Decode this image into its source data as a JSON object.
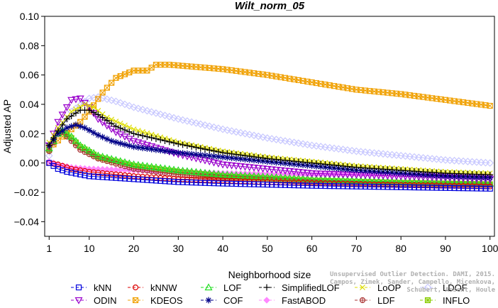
{
  "watermark": {
    "line1": "Unsupervised Outlier Detection. DAMI, 2015.",
    "line2": "Campos, Zimek, Sander, Campello, Micenkova, Schubert, Assent, Houle"
  },
  "chart_data": {
    "type": "line",
    "title": "Wilt_norm_05",
    "xlabel": "Neighborhood size",
    "ylabel": "Adjusted AP",
    "xlim": [
      0,
      101
    ],
    "ylim": [
      -0.05,
      0.1
    ],
    "xticks": [
      1,
      10,
      20,
      30,
      40,
      50,
      60,
      70,
      80,
      90,
      100
    ],
    "yticks": [
      -0.04,
      -0.02,
      0.0,
      0.02,
      0.04,
      0.06,
      0.08,
      0.1
    ],
    "ytick_labels": [
      "−0.04",
      "−0.02",
      "0.00",
      "0.02",
      "0.04",
      "0.06",
      "0.08",
      "0.10"
    ],
    "grid": false,
    "legend_position": "bottom",
    "series": [
      {
        "name": "kNN",
        "color": "#0000dd",
        "marker": "square",
        "knots": [
          [
            1,
            0.0
          ],
          [
            3,
            -0.004
          ],
          [
            5,
            -0.006
          ],
          [
            10,
            -0.009
          ],
          [
            20,
            -0.011
          ],
          [
            30,
            -0.013
          ],
          [
            40,
            -0.014
          ],
          [
            60,
            -0.0155
          ],
          [
            80,
            -0.0165
          ],
          [
            100,
            -0.0175
          ]
        ]
      },
      {
        "name": "kNNW",
        "color": "#dd0000",
        "marker": "circle",
        "knots": [
          [
            1,
            0.0
          ],
          [
            3,
            -0.001
          ],
          [
            6,
            -0.004
          ],
          [
            10,
            -0.006
          ],
          [
            20,
            -0.009
          ],
          [
            30,
            -0.011
          ],
          [
            50,
            -0.013
          ],
          [
            70,
            -0.0145
          ],
          [
            100,
            -0.016
          ]
        ]
      },
      {
        "name": "LOF",
        "color": "#22dd22",
        "marker": "triangle-up",
        "knots": [
          [
            1,
            0.01
          ],
          [
            3,
            0.02
          ],
          [
            4,
            0.022
          ],
          [
            6,
            0.018
          ],
          [
            8,
            0.012
          ],
          [
            12,
            0.005
          ],
          [
            20,
            -0.001
          ],
          [
            30,
            -0.005
          ],
          [
            40,
            -0.008
          ],
          [
            60,
            -0.011
          ],
          [
            80,
            -0.013
          ],
          [
            100,
            -0.014
          ]
        ]
      },
      {
        "name": "SimplifiedLOF",
        "color": "#000000",
        "marker": "plus",
        "knots": [
          [
            1,
            0.012
          ],
          [
            3,
            0.022
          ],
          [
            5,
            0.03
          ],
          [
            8,
            0.036
          ],
          [
            10,
            0.036
          ],
          [
            12,
            0.033
          ],
          [
            16,
            0.025
          ],
          [
            20,
            0.02
          ],
          [
            30,
            0.013
          ],
          [
            40,
            0.007
          ],
          [
            50,
            0.003
          ],
          [
            60,
            0.0
          ],
          [
            70,
            -0.003
          ],
          [
            80,
            -0.005
          ],
          [
            90,
            -0.007
          ],
          [
            100,
            -0.008
          ]
        ]
      },
      {
        "name": "LoOP",
        "color": "#dddd00",
        "marker": "x",
        "knots": [
          [
            1,
            0.014
          ],
          [
            3,
            0.024
          ],
          [
            6,
            0.035
          ],
          [
            9,
            0.04
          ],
          [
            11,
            0.038
          ],
          [
            14,
            0.031
          ],
          [
            20,
            0.023
          ],
          [
            30,
            0.014
          ],
          [
            40,
            0.008
          ],
          [
            50,
            0.004
          ],
          [
            60,
            0.001
          ],
          [
            70,
            -0.002
          ],
          [
            80,
            -0.004
          ],
          [
            90,
            -0.006
          ],
          [
            100,
            -0.007
          ]
        ]
      },
      {
        "name": "LDOF",
        "color": "#c8c8ff",
        "marker": "diamond",
        "knots": [
          [
            1,
            0.005
          ],
          [
            3,
            0.02
          ],
          [
            6,
            0.035
          ],
          [
            10,
            0.044
          ],
          [
            12,
            0.045
          ],
          [
            16,
            0.042
          ],
          [
            20,
            0.038
          ],
          [
            30,
            0.03
          ],
          [
            40,
            0.023
          ],
          [
            50,
            0.017
          ],
          [
            60,
            0.012
          ],
          [
            70,
            0.008
          ],
          [
            80,
            0.005
          ],
          [
            90,
            0.002
          ],
          [
            100,
            0.0
          ]
        ]
      },
      {
        "name": "ODIN",
        "color": "#9900cc",
        "marker": "triangle-down",
        "knots": [
          [
            1,
            0.012
          ],
          [
            3,
            0.028
          ],
          [
            6,
            0.043
          ],
          [
            8,
            0.044
          ],
          [
            10,
            0.038
          ],
          [
            12,
            0.03
          ],
          [
            16,
            0.021
          ],
          [
            20,
            0.015
          ],
          [
            30,
            0.006
          ],
          [
            40,
            -0.001
          ],
          [
            50,
            -0.004
          ],
          [
            60,
            -0.007
          ],
          [
            80,
            -0.009
          ],
          [
            100,
            -0.011
          ]
        ]
      },
      {
        "name": "KDEOS",
        "color": "#f0a000",
        "marker": "square-x",
        "knots": [
          [
            1,
            0.01
          ],
          [
            4,
            0.018
          ],
          [
            8,
            0.028
          ],
          [
            10,
            0.035
          ],
          [
            13,
            0.048
          ],
          [
            16,
            0.058
          ],
          [
            20,
            0.063
          ],
          [
            23,
            0.063
          ],
          [
            25,
            0.067
          ],
          [
            28,
            0.067
          ],
          [
            32,
            0.066
          ],
          [
            40,
            0.064
          ],
          [
            45,
            0.062
          ],
          [
            50,
            0.06
          ],
          [
            60,
            0.055
          ],
          [
            70,
            0.05
          ],
          [
            80,
            0.047
          ],
          [
            90,
            0.043
          ],
          [
            100,
            0.039
          ]
        ]
      },
      {
        "name": "COF",
        "color": "#000088",
        "marker": "asterisk",
        "knots": [
          [
            1,
            0.012
          ],
          [
            3,
            0.02
          ],
          [
            5,
            0.024
          ],
          [
            7,
            0.026
          ],
          [
            9,
            0.024
          ],
          [
            12,
            0.019
          ],
          [
            15,
            0.015
          ],
          [
            20,
            0.011
          ],
          [
            30,
            0.007
          ],
          [
            40,
            0.004
          ],
          [
            50,
            0.001
          ],
          [
            60,
            -0.002
          ],
          [
            70,
            -0.005
          ],
          [
            80,
            -0.007
          ],
          [
            90,
            -0.009
          ],
          [
            100,
            -0.01
          ]
        ]
      },
      {
        "name": "FastABOD",
        "color": "#ff88ff",
        "marker": "diamond-filled",
        "knots": [
          [
            1,
            0.001
          ],
          [
            3,
            -0.001
          ],
          [
            6,
            -0.003
          ],
          [
            10,
            -0.004
          ],
          [
            20,
            -0.005
          ],
          [
            30,
            -0.006
          ],
          [
            40,
            -0.007
          ],
          [
            50,
            -0.0075
          ],
          [
            60,
            -0.008
          ],
          [
            80,
            -0.008
          ],
          [
            100,
            -0.0085
          ]
        ]
      },
      {
        "name": "LDF",
        "color": "#aa3333",
        "marker": "circle-plus",
        "knots": [
          [
            1,
            0.008
          ],
          [
            3,
            0.02
          ],
          [
            4,
            0.021
          ],
          [
            6,
            0.015
          ],
          [
            8,
            0.009
          ],
          [
            12,
            0.003
          ],
          [
            20,
            -0.004
          ],
          [
            30,
            -0.008
          ],
          [
            40,
            -0.01
          ],
          [
            60,
            -0.013
          ],
          [
            80,
            -0.0145
          ],
          [
            100,
            -0.015
          ]
        ]
      },
      {
        "name": "INFLO",
        "color": "#88cc00",
        "marker": "square-star",
        "knots": [
          [
            1,
            0.009
          ],
          [
            3,
            0.02
          ],
          [
            4,
            0.021
          ],
          [
            6,
            0.017
          ],
          [
            8,
            0.011
          ],
          [
            12,
            0.004
          ],
          [
            20,
            -0.002
          ],
          [
            30,
            -0.006
          ],
          [
            40,
            -0.009
          ],
          [
            60,
            -0.012
          ],
          [
            80,
            -0.0135
          ],
          [
            100,
            -0.0145
          ]
        ]
      }
    ]
  }
}
